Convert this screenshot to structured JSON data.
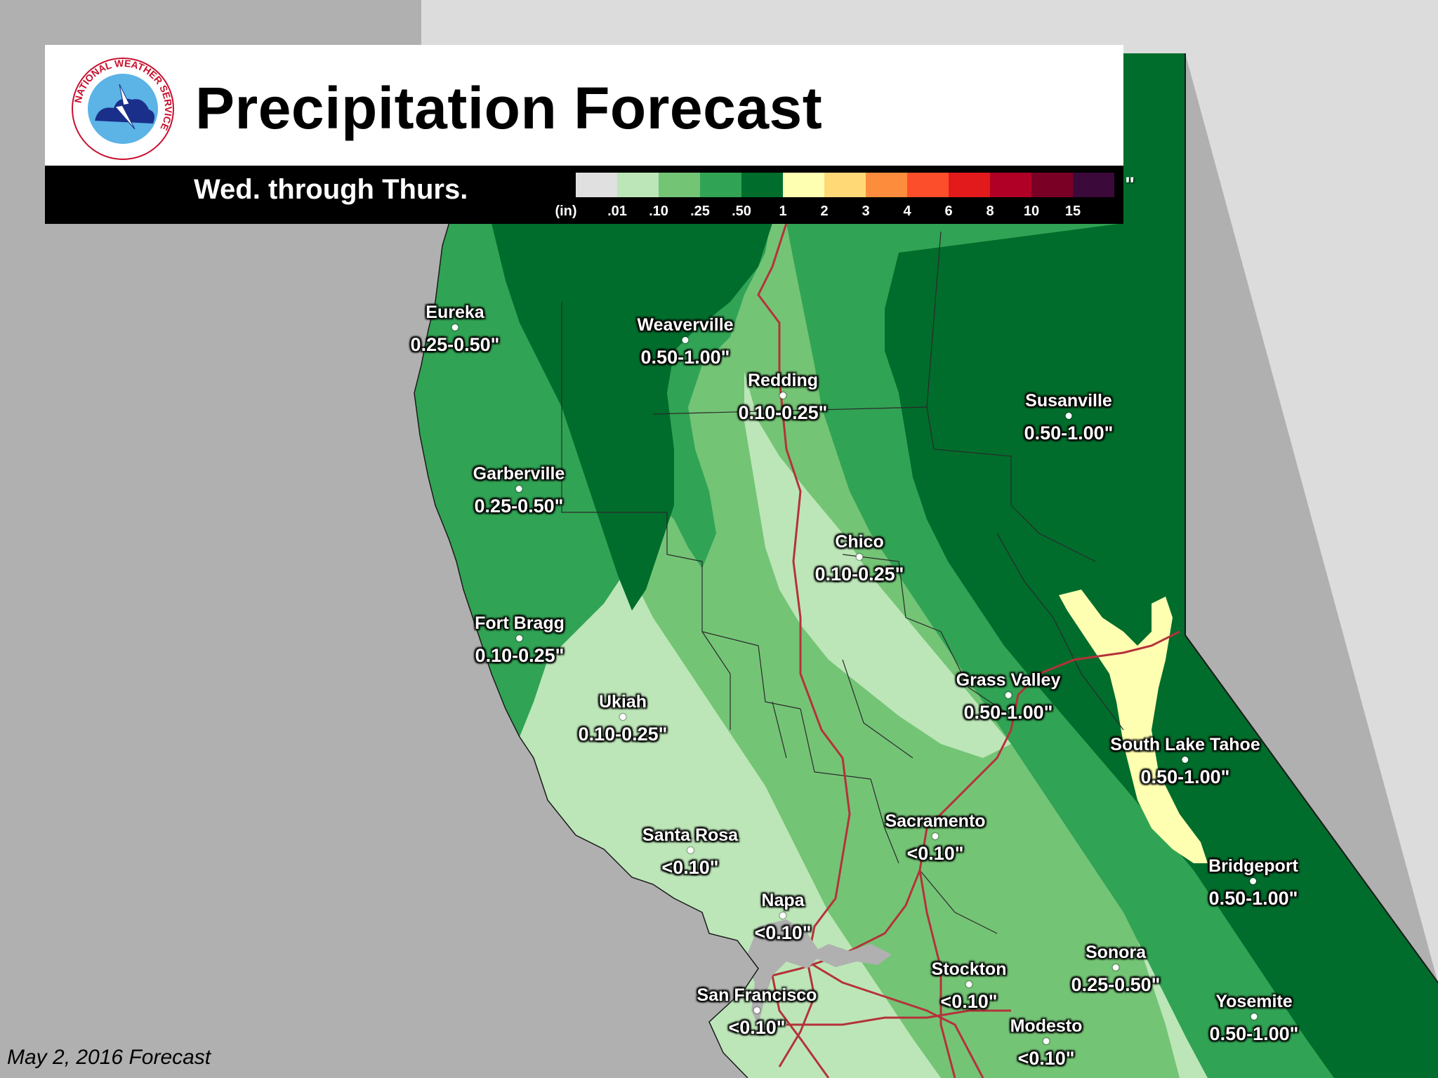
{
  "title": "Precipitation Forecast",
  "period": "Wed. through Thurs.",
  "footer": "May 2, 2016 Forecast",
  "logo": {
    "ring_text": "NATIONAL WEATHER SERVICE",
    "icon": "nws-logo-icon"
  },
  "legend": {
    "unit": "(in)",
    "swatches": [
      "#e0e0e0",
      "#bce6b8",
      "#74c476",
      "#31a354",
      "#006d2c",
      "#ffffb2",
      "#fed976",
      "#fd8d3c",
      "#fc4e2a",
      "#e31a1c",
      "#b10026",
      "#7a0025",
      "#3b0a3a"
    ],
    "labels": [
      ".01",
      ".10",
      ".25",
      ".50",
      "1",
      "2",
      "3",
      "4",
      "6",
      "8",
      "10",
      "15"
    ]
  },
  "cities": [
    {
      "name": "Eureka",
      "amount": "0.25-0.50\""
    },
    {
      "name": "Weaverville",
      "amount": "0.50-1.00\""
    },
    {
      "name": "Redding",
      "amount": "0.10-0.25\""
    },
    {
      "name": "Susanville",
      "amount": "0.50-1.00\""
    },
    {
      "name": "Garberville",
      "amount": "0.25-0.50\""
    },
    {
      "name": "Chico",
      "amount": "0.10-0.25\""
    },
    {
      "name": "Fort Bragg",
      "amount": "0.10-0.25\""
    },
    {
      "name": "Grass Valley",
      "amount": "0.50-1.00\""
    },
    {
      "name": "Ukiah",
      "amount": "0.10-0.25\""
    },
    {
      "name": "South Lake Tahoe",
      "amount": "0.50-1.00\""
    },
    {
      "name": "Sacramento",
      "amount": "<0.10\""
    },
    {
      "name": "Santa Rosa",
      "amount": "<0.10\""
    },
    {
      "name": "Bridgeport",
      "amount": "0.50-1.00\""
    },
    {
      "name": "Napa",
      "amount": "<0.10\""
    },
    {
      "name": "Sonora",
      "amount": "0.25-0.50\""
    },
    {
      "name": "Stockton",
      "amount": "<0.10\""
    },
    {
      "name": "San Francisco",
      "amount": "<0.10\""
    },
    {
      "name": "Yosemite",
      "amount": "0.50-1.00\""
    },
    {
      "name": "Modesto",
      "amount": "<0.10\""
    }
  ],
  "colors": {
    "ocean": "#b0b0b0",
    "land_outside": "#dcdcdc",
    "roads": "#b5323a",
    "county_lines": "#2a2a2a"
  }
}
